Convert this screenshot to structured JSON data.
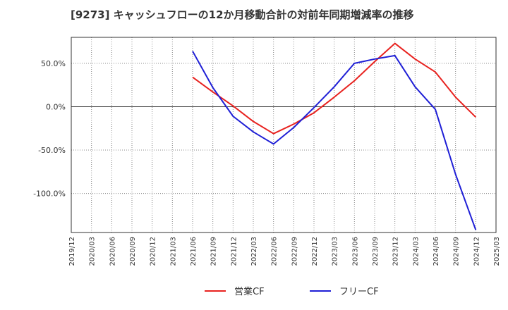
{
  "chart_data": {
    "type": "line",
    "title": "[9273]  キャッシュフローの12か月移動合計の対前年同期増減率の推移",
    "xlabel": "",
    "ylabel": "",
    "ylim": [
      -145,
      80
    ],
    "y_ticks": [
      50,
      0,
      -50,
      -100
    ],
    "y_tick_labels": [
      "50.0%",
      "0.0%",
      "-50.0%",
      "-100.0%"
    ],
    "x_categories": [
      "2019/12",
      "2020/03",
      "2020/06",
      "2020/09",
      "2020/12",
      "2021/03",
      "2021/06",
      "2021/09",
      "2021/12",
      "2022/03",
      "2022/06",
      "2022/09",
      "2022/12",
      "2023/03",
      "2023/06",
      "2023/09",
      "2023/12",
      "2024/03",
      "2024/06",
      "2024/09",
      "2024/12",
      "2025/03"
    ],
    "legend_position": "bottom",
    "series": [
      {
        "name": "営業CF",
        "color": "#e8221f",
        "values": [
          null,
          null,
          null,
          null,
          null,
          null,
          34,
          17,
          1,
          -17,
          -31,
          -20,
          -7,
          11,
          30,
          52,
          73,
          55,
          40,
          11,
          -12,
          null
        ]
      },
      {
        "name": "フリーCF",
        "color": "#1f1fd6",
        "values": [
          null,
          null,
          null,
          null,
          null,
          null,
          64,
          22,
          -11,
          -29,
          -43,
          -24,
          -1,
          23,
          50,
          55,
          59,
          23,
          -3,
          -78,
          -142,
          null
        ]
      }
    ]
  }
}
